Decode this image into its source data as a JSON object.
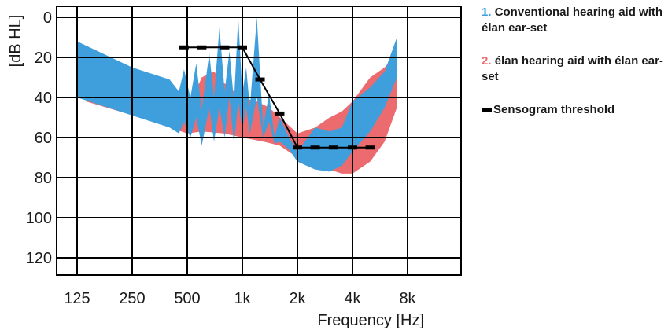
{
  "chart_data": {
    "type": "area",
    "xlabel": "Frequency [Hz]",
    "ylabel": "[dB HL]",
    "x_scale": "log2",
    "x_ticks": [
      {
        "value": 125,
        "label": "125"
      },
      {
        "value": 250,
        "label": "250"
      },
      {
        "value": 500,
        "label": "500"
      },
      {
        "value": 1000,
        "label": "1k"
      },
      {
        "value": 2000,
        "label": "2k"
      },
      {
        "value": 4000,
        "label": "4k"
      },
      {
        "value": 8000,
        "label": "8k"
      }
    ],
    "y_ticks": [
      0,
      20,
      40,
      60,
      80,
      100,
      120
    ],
    "ylim": [
      0,
      130
    ],
    "y_inverted": true,
    "xlim": [
      100,
      10000
    ],
    "grid": true,
    "legend_position": "right",
    "series": [
      {
        "num": "1.",
        "name": "Conventional hearing aid with élan ear-set",
        "color": "#3f9fdc",
        "kind": "band",
        "upper": [
          [
            125,
            12
          ],
          [
            250,
            25
          ],
          [
            400,
            31
          ],
          [
            450,
            37
          ],
          [
            480,
            26
          ],
          [
            520,
            40
          ],
          [
            560,
            23
          ],
          [
            600,
            46
          ],
          [
            660,
            18
          ],
          [
            700,
            40
          ],
          [
            750,
            5
          ],
          [
            800,
            37
          ],
          [
            850,
            17
          ],
          [
            900,
            42
          ],
          [
            950,
            0
          ],
          [
            1000,
            38
          ],
          [
            1050,
            25
          ],
          [
            1100,
            45
          ],
          [
            1200,
            0
          ],
          [
            1300,
            55
          ],
          [
            1400,
            38
          ],
          [
            1500,
            60
          ],
          [
            1600,
            50
          ],
          [
            1800,
            60
          ],
          [
            2000,
            67
          ],
          [
            2500,
            55
          ],
          [
            3000,
            57
          ],
          [
            3500,
            55
          ],
          [
            4000,
            42
          ],
          [
            5000,
            35
          ],
          [
            6000,
            27
          ],
          [
            7000,
            10
          ]
        ],
        "lower": [
          [
            125,
            40
          ],
          [
            250,
            49
          ],
          [
            400,
            55
          ],
          [
            450,
            58
          ],
          [
            480,
            52
          ],
          [
            520,
            60
          ],
          [
            560,
            50
          ],
          [
            600,
            64
          ],
          [
            660,
            45
          ],
          [
            700,
            62
          ],
          [
            750,
            45
          ],
          [
            800,
            60
          ],
          [
            850,
            40
          ],
          [
            900,
            63
          ],
          [
            950,
            42
          ],
          [
            1000,
            56
          ],
          [
            1050,
            45
          ],
          [
            1100,
            58
          ],
          [
            1200,
            40
          ],
          [
            1300,
            60
          ],
          [
            1400,
            52
          ],
          [
            1500,
            63
          ],
          [
            1600,
            62
          ],
          [
            1800,
            66
          ],
          [
            2000,
            72
          ],
          [
            2500,
            76
          ],
          [
            3000,
            77
          ],
          [
            3500,
            74
          ],
          [
            4000,
            67
          ],
          [
            5000,
            57
          ],
          [
            6000,
            45
          ],
          [
            7000,
            30
          ]
        ]
      },
      {
        "num": "2.",
        "name": "élan hearing aid with élan ear-set",
        "color": "#ec6b6f",
        "kind": "band",
        "upper": [
          [
            140,
            40
          ],
          [
            300,
            44
          ],
          [
            500,
            43
          ],
          [
            550,
            38
          ],
          [
            600,
            30
          ],
          [
            700,
            27
          ],
          [
            800,
            33
          ],
          [
            900,
            37
          ],
          [
            1000,
            40
          ],
          [
            1200,
            42
          ],
          [
            1400,
            45
          ],
          [
            1700,
            52
          ],
          [
            2000,
            58
          ],
          [
            2500,
            55
          ],
          [
            3000,
            50
          ],
          [
            3500,
            47
          ],
          [
            4000,
            42
          ],
          [
            5000,
            30
          ],
          [
            6000,
            25
          ],
          [
            7000,
            18
          ]
        ],
        "lower": [
          [
            140,
            42
          ],
          [
            300,
            51
          ],
          [
            500,
            58
          ],
          [
            600,
            57
          ],
          [
            800,
            58
          ],
          [
            1000,
            60
          ],
          [
            1300,
            62
          ],
          [
            1600,
            64
          ],
          [
            2000,
            70
          ],
          [
            2500,
            73
          ],
          [
            3000,
            76
          ],
          [
            3500,
            78
          ],
          [
            4000,
            78
          ],
          [
            5000,
            72
          ],
          [
            6000,
            62
          ],
          [
            7000,
            45
          ]
        ]
      },
      {
        "name": "Sensogram threshold",
        "color": "#000000",
        "kind": "line",
        "x": [
          480,
          600,
          800,
          1000,
          1250,
          1600,
          2000,
          2500,
          3150,
          4000,
          5000
        ],
        "y": [
          15,
          15,
          15,
          15,
          31,
          48,
          65,
          65,
          65,
          65,
          65
        ]
      }
    ]
  }
}
